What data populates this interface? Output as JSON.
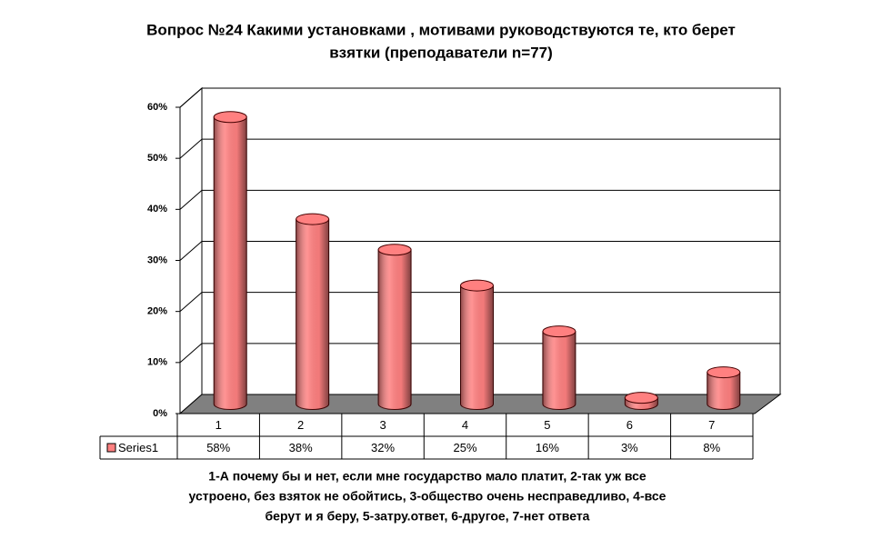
{
  "chart_data": {
    "type": "bar3d",
    "title": [
      "Вопрос №24 Какими установками , мотивами руководствуются те, кто берет",
      "взятки (преподаватели n=77)"
    ],
    "categories": [
      "1",
      "2",
      "3",
      "4",
      "5",
      "6",
      "7"
    ],
    "series": [
      {
        "name": "Series1",
        "color": "#ff8080",
        "values": [
          58,
          38,
          32,
          25,
          16,
          3,
          8
        ],
        "value_labels": [
          "58%",
          "38%",
          "32%",
          "25%",
          "16%",
          "3%",
          "8%"
        ]
      }
    ],
    "ylim": [
      0,
      60
    ],
    "yticks": [
      {
        "value": 0,
        "label": "0%"
      },
      {
        "value": 10,
        "label": "10%"
      },
      {
        "value": 20,
        "label": "20%"
      },
      {
        "value": 30,
        "label": "30%"
      },
      {
        "value": 40,
        "label": "40%"
      },
      {
        "value": 50,
        "label": "50%"
      },
      {
        "value": 60,
        "label": "60%"
      }
    ],
    "grid": true,
    "data_table": true,
    "footnote": [
      "1-А почему бы и нет, если мне государство мало платит, 2-так уж все",
      "устроено, без взяток не обойтись, 3-общество очень несправедливо, 4-все",
      "берут и я беру, 5-затру.ответ, 6-другое, 7-нет ответа"
    ]
  }
}
